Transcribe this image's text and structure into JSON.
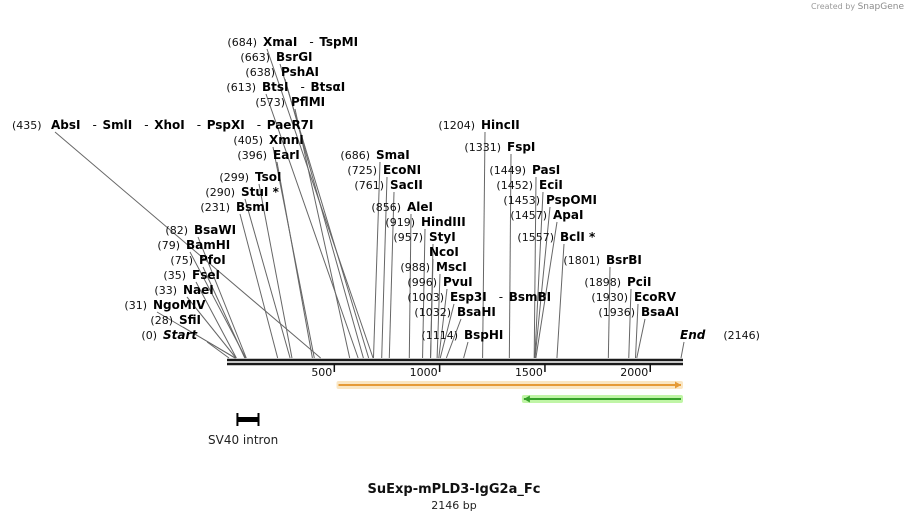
{
  "credit": {
    "text": "Created by",
    "brand": "SnapGene"
  },
  "sequence": {
    "name": "SuExp-mPLD3-IgG2a_Fc",
    "length_label": "2146 bp",
    "length": 2146
  },
  "ruler": {
    "ticks": [
      "500",
      "1000",
      "1500",
      "2000"
    ]
  },
  "sites": [
    {
      "pos": "(684)",
      "names": [
        "XmaI",
        "TspMI"
      ],
      "italic": false,
      "cut": 684
    },
    {
      "pos": "(663)",
      "names": [
        "BsrGI"
      ],
      "italic": false,
      "cut": 663
    },
    {
      "pos": "(638)",
      "names": [
        "PshAI"
      ],
      "italic": false,
      "cut": 638
    },
    {
      "pos": "(613)",
      "names": [
        "BtsI",
        "BtsαI"
      ],
      "italic": false,
      "cut": 613
    },
    {
      "pos": "(573)",
      "names": [
        "PflMI"
      ],
      "italic": false,
      "cut": 573
    },
    {
      "pos": "(435)",
      "names": [
        "AbsI",
        "SmlI",
        "XhoI",
        "PspXI",
        "PaeR7I"
      ],
      "italic": false,
      "cut": 435
    },
    {
      "pos": "(405)",
      "names": [
        "XmnI"
      ],
      "italic": false,
      "cut": 405
    },
    {
      "pos": "(396)",
      "names": [
        "EarI"
      ],
      "italic": false,
      "cut": 396
    },
    {
      "pos": "(299)",
      "names": [
        "TsoI"
      ],
      "italic": false,
      "cut": 299
    },
    {
      "pos": "(290)",
      "names": [
        "StuI *"
      ],
      "italic": false,
      "cut": 290
    },
    {
      "pos": "(231)",
      "names": [
        "BsmI"
      ],
      "italic": false,
      "cut": 231
    },
    {
      "pos": "(82)",
      "names": [
        "BsaWI"
      ],
      "italic": false,
      "cut": 82
    },
    {
      "pos": "(79)",
      "names": [
        "BamHI"
      ],
      "italic": false,
      "cut": 79
    },
    {
      "pos": "(75)",
      "names": [
        "PfoI"
      ],
      "italic": false,
      "cut": 75
    },
    {
      "pos": "(35)",
      "names": [
        "FseI"
      ],
      "italic": false,
      "cut": 35
    },
    {
      "pos": "(33)",
      "names": [
        "NaeI"
      ],
      "italic": false,
      "cut": 33
    },
    {
      "pos": "(31)",
      "names": [
        "NgoMIV"
      ],
      "italic": false,
      "cut": 31
    },
    {
      "pos": "(28)",
      "names": [
        "SfiI"
      ],
      "italic": false,
      "cut": 28
    },
    {
      "pos": "(0)",
      "names": [
        "Start"
      ],
      "italic": true,
      "cut": 0
    },
    {
      "pos": "(686)",
      "names": [
        "SmaI"
      ],
      "italic": false,
      "cut": 686
    },
    {
      "pos": "(725)",
      "names": [
        "EcoNI"
      ],
      "italic": false,
      "cut": 725
    },
    {
      "pos": "(761)",
      "names": [
        "SacII"
      ],
      "italic": false,
      "cut": 761
    },
    {
      "pos": "(856)",
      "names": [
        "AleI"
      ],
      "italic": false,
      "cut": 856
    },
    {
      "pos": "(919)",
      "names": [
        "HindIII"
      ],
      "italic": false,
      "cut": 919
    },
    {
      "pos": "(957)",
      "names": [
        "StyI"
      ],
      "italic": false,
      "cut": 957
    },
    {
      "pos": "",
      "names": [
        "NcoI"
      ],
      "italic": false,
      "cut": 957
    },
    {
      "pos": "(988)",
      "names": [
        "MscI"
      ],
      "italic": false,
      "cut": 988
    },
    {
      "pos": "(996)",
      "names": [
        "PvuI"
      ],
      "italic": false,
      "cut": 996
    },
    {
      "pos": "(1003)",
      "names": [
        "Esp3I",
        "BsmBI"
      ],
      "italic": false,
      "cut": 1003
    },
    {
      "pos": "(1032)",
      "names": [
        "BsaHI"
      ],
      "italic": false,
      "cut": 1032
    },
    {
      "pos": "(1114)",
      "names": [
        "BspHI"
      ],
      "italic": false,
      "cut": 1114
    },
    {
      "pos": "(1204)",
      "names": [
        "HincII"
      ],
      "italic": false,
      "cut": 1204
    },
    {
      "pos": "(1331)",
      "names": [
        "FspI"
      ],
      "italic": false,
      "cut": 1331
    },
    {
      "pos": "(1449)",
      "names": [
        "PasI"
      ],
      "italic": false,
      "cut": 1449
    },
    {
      "pos": "(1452)",
      "names": [
        "EciI"
      ],
      "italic": false,
      "cut": 1452
    },
    {
      "pos": "(1453)",
      "names": [
        "PspOMI"
      ],
      "italic": false,
      "cut": 1453
    },
    {
      "pos": "(1457)",
      "names": [
        "ApaI"
      ],
      "italic": false,
      "cut": 1457
    },
    {
      "pos": "(1557)",
      "names": [
        "BclI *"
      ],
      "italic": false,
      "cut": 1557
    },
    {
      "pos": "(1801)",
      "names": [
        "BsrBI"
      ],
      "italic": false,
      "cut": 1801
    },
    {
      "pos": "(1898)",
      "names": [
        "PciI"
      ],
      "italic": false,
      "cut": 1898
    },
    {
      "pos": "(1930)",
      "names": [
        "EcoRV"
      ],
      "italic": false,
      "cut": 1930
    },
    {
      "pos": "(1936)",
      "names": [
        "BsaAI"
      ],
      "italic": false,
      "cut": 1936
    },
    {
      "pos": "(2146)",
      "names": [
        "End"
      ],
      "italic": true,
      "cut": 2146
    }
  ],
  "features": [
    {
      "name": "SV40 intron",
      "start": 40,
      "end": 140,
      "kind": "intron",
      "color": "#000000"
    },
    {
      "name": "",
      "start": 520,
      "end": 2146,
      "kind": "forward-arrow",
      "color": "#e59a37",
      "fill": "#f9e3bd"
    },
    {
      "name": "",
      "start": 1400,
      "end": 2146,
      "kind": "reverse-arrow",
      "color": "#36a12a",
      "fill": "#b9f49c"
    }
  ],
  "colors": {
    "line": "#666666",
    "backbone": "#1a1a1a"
  }
}
